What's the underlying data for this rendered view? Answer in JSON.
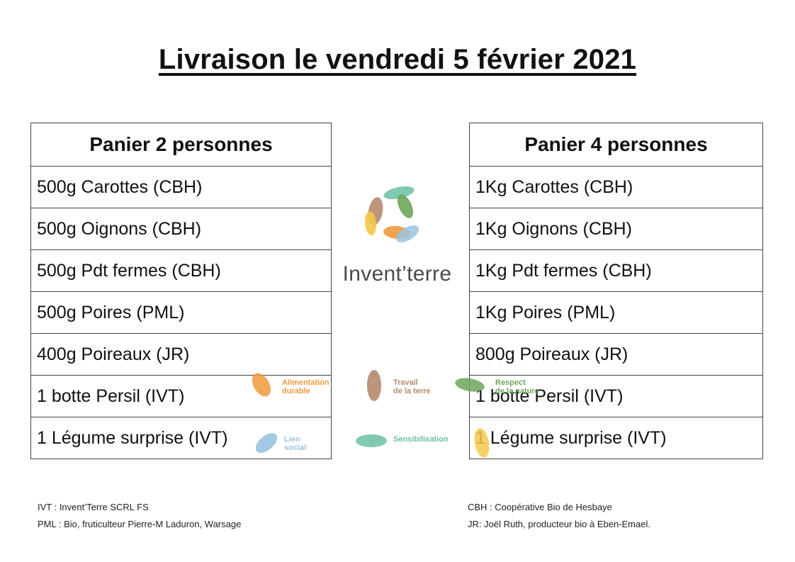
{
  "title": "Livraison le vendredi 5 février 2021",
  "basket_2": {
    "header": "Panier 2 personnes",
    "items": [
      "500g Carottes (CBH)",
      "500g Oignons (CBH)",
      "500g Pdt fermes (CBH)",
      "500g Poires (PML)",
      "400g Poireaux (JR)",
      "1 botte Persil (IVT)",
      "1 Légume surprise (IVT)"
    ]
  },
  "basket_4": {
    "header": "Panier 4 personnes",
    "items": [
      "1Kg Carottes (CBH)",
      "1Kg Oignons (CBH)",
      "1Kg Pdt fermes (CBH)",
      "1Kg Poires (PML)",
      "800g Poireaux (JR)",
      "1 botte Persil (IVT)",
      "1 Légume surprise (IVT)"
    ]
  },
  "logo": {
    "name": "Invent’terre",
    "values": {
      "alimentation": "Alimentation\ndurable",
      "travail": "Travail\nde la terre",
      "respect": "Respect\nde la nature",
      "lien": "Lien\nsocial",
      "sensibilisation": "Sensibilisation"
    },
    "colors": {
      "orange": "#ef9a3c",
      "brown": "#b58a6e",
      "green": "#6fa55a",
      "blue": "#9cc3e0",
      "teal": "#6cbfa3",
      "yellow": "#f3c84a"
    }
  },
  "legend": {
    "ivt": "IVT : Invent’Terre SCRL FS",
    "pml": "PML : Bio, fruticulteur Pierre-M Laduron, Warsage",
    "cbh": "CBH : Coopérative Bio de Hesbaye",
    "jr": "JR: Joël Ruth, producteur bio à Eben-Emael."
  }
}
